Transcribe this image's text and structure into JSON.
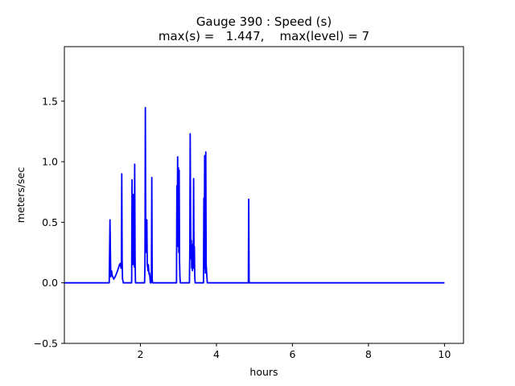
{
  "chart_data": {
    "type": "line",
    "title": "Gauge 390 : Speed (s)",
    "subtitle": "max(s) =   1.447,    max(level) = 7",
    "xlabel": "hours",
    "ylabel": "meters/sec",
    "xlim": [
      0.0,
      10.5
    ],
    "ylim": [
      -0.5,
      1.95
    ],
    "xticks": [
      2,
      4,
      6,
      8,
      10
    ],
    "xtick_labels": [
      "2",
      "4",
      "6",
      "8",
      "10"
    ],
    "yticks": [
      -0.5,
      0.0,
      0.5,
      1.0,
      1.5
    ],
    "ytick_labels": [
      "−0.5",
      "0.0",
      "0.5",
      "1.0",
      "1.5"
    ],
    "grid": false,
    "series": [
      {
        "color": "#0000ff",
        "x": [
          0.0,
          1.15,
          1.18,
          1.2,
          1.22,
          1.24,
          1.26,
          1.3,
          1.35,
          1.4,
          1.43,
          1.45,
          1.47,
          1.49,
          1.5,
          1.51,
          1.52,
          1.53,
          1.54,
          1.55,
          1.56,
          1.57,
          1.6,
          1.65,
          1.7,
          1.74,
          1.76,
          1.77,
          1.78,
          1.79,
          1.8,
          1.82,
          1.83,
          1.84,
          1.85,
          1.86,
          1.87,
          1.9,
          2.0,
          2.08,
          2.1,
          2.11,
          2.12,
          2.13,
          2.14,
          2.15,
          2.16,
          2.17,
          2.18,
          2.19,
          2.2,
          2.21,
          2.22,
          2.23,
          2.24,
          2.25,
          2.26,
          2.27,
          2.28,
          2.29,
          2.3,
          2.31,
          2.32,
          2.33,
          2.4,
          2.6,
          2.9,
          2.95,
          2.96,
          2.97,
          2.98,
          2.99,
          3.0,
          3.01,
          3.02,
          3.03,
          3.04,
          3.05,
          3.06,
          3.07,
          3.1,
          3.2,
          3.28,
          3.29,
          3.3,
          3.31,
          3.32,
          3.33,
          3.34,
          3.35,
          3.36,
          3.37,
          3.38,
          3.39,
          3.4,
          3.41,
          3.42,
          3.43,
          3.44,
          3.45,
          3.46,
          3.47,
          3.5,
          3.6,
          3.65,
          3.66,
          3.67,
          3.68,
          3.69,
          3.7,
          3.71,
          3.72,
          3.73,
          3.74,
          3.75,
          3.76,
          3.77,
          3.78,
          3.8,
          4.0,
          4.5,
          4.8,
          4.84,
          4.85,
          4.86,
          4.87,
          4.9,
          6.0,
          8.0,
          10.0
        ],
        "y": [
          0.0,
          0.0,
          0.0,
          0.52,
          0.05,
          0.1,
          0.06,
          0.03,
          0.06,
          0.1,
          0.13,
          0.15,
          0.16,
          0.12,
          0.15,
          0.9,
          0.2,
          0.03,
          0.02,
          0.0,
          0.0,
          0.0,
          0.0,
          0.0,
          0.0,
          0.0,
          0.0,
          0.0,
          0.85,
          0.25,
          0.15,
          0.73,
          0.3,
          0.13,
          0.98,
          0.22,
          0.0,
          0.0,
          0.0,
          0.0,
          0.0,
          0.0,
          0.15,
          1.447,
          0.5,
          0.35,
          0.25,
          0.52,
          0.15,
          0.13,
          0.1,
          0.15,
          0.1,
          0.07,
          0.08,
          0.05,
          0.0,
          0.05,
          0.0,
          0.05,
          0.87,
          0.03,
          0.0,
          0.0,
          0.0,
          0.0,
          0.0,
          0.0,
          0.8,
          0.6,
          1.04,
          0.3,
          0.95,
          0.25,
          0.93,
          0.18,
          0.05,
          0.0,
          0.0,
          0.0,
          0.0,
          0.0,
          0.0,
          0.0,
          0.3,
          1.23,
          0.55,
          0.2,
          0.35,
          0.12,
          0.3,
          0.1,
          0.32,
          0.12,
          0.86,
          0.2,
          0.3,
          0.05,
          0.0,
          0.0,
          0.0,
          0.0,
          0.0,
          0.0,
          0.0,
          0.0,
          0.7,
          0.12,
          1.05,
          0.2,
          0.08,
          1.08,
          0.15,
          0.1,
          0.05,
          0.0,
          0.0,
          0.0,
          0.0,
          0.0,
          0.0,
          0.0,
          0.0,
          0.69,
          0.0,
          0.0,
          0.0,
          0.0,
          0.0,
          0.0
        ]
      }
    ]
  }
}
